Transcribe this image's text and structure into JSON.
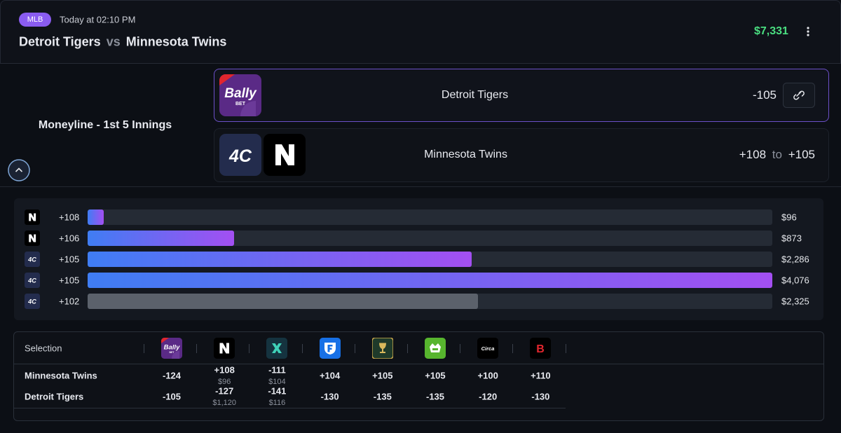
{
  "header": {
    "league": "MLB",
    "time": "Today at 02:10 PM",
    "team1": "Detroit Tigers",
    "vs": "vs",
    "team2": "Minnesota Twins",
    "balance": "$7,331"
  },
  "logos": {
    "bally": "Bally",
    "bally_sub": "BET",
    "fourc": "4C",
    "circa": "Circa",
    "betonline": "B"
  },
  "market": {
    "title": "Moneyline - 1st 5 Innings",
    "selections": [
      {
        "name": "Detroit Tigers",
        "odds": "-105"
      },
      {
        "name": "Minnesota Twins",
        "odds_from": "+108",
        "to": "to",
        "odds_to": "+105"
      }
    ]
  },
  "ladder": [
    {
      "book": "n",
      "odds": "+108",
      "amount": 96,
      "amount_label": "$96",
      "colors": [
        "#3f7df3",
        "#a34ff2"
      ]
    },
    {
      "book": "n",
      "odds": "+106",
      "amount": 873,
      "amount_label": "$873",
      "colors": [
        "#3f7df3",
        "#a34ff2"
      ]
    },
    {
      "book": "fourc",
      "odds": "+105",
      "amount": 2286,
      "amount_label": "$2,286",
      "colors": [
        "#3f7df3",
        "#a34ff2"
      ]
    },
    {
      "book": "fourc",
      "odds": "+105",
      "amount": 4076,
      "amount_label": "$4,076",
      "colors": [
        "#3f7df3",
        "#a34ff2"
      ]
    },
    {
      "book": "fourc",
      "odds": "+102",
      "amount": 2325,
      "amount_label": "$2,325",
      "colors": [
        "#5b616b",
        "#5b616b"
      ]
    }
  ],
  "table": {
    "header": "Selection",
    "books": [
      "bally",
      "n",
      "x",
      "fanduel",
      "goblet",
      "draftkings",
      "circa",
      "betonline"
    ],
    "rows": [
      {
        "name": "Minnesota Twins",
        "cells": [
          {
            "odds": "-124"
          },
          {
            "odds": "+108",
            "stake": "$96"
          },
          {
            "odds": "-111",
            "stake": "$104"
          },
          {
            "odds": "+104"
          },
          {
            "odds": "+105"
          },
          {
            "odds": "+105"
          },
          {
            "odds": "+100"
          },
          {
            "odds": "+110"
          }
        ]
      },
      {
        "name": "Detroit Tigers",
        "cells": [
          {
            "odds": "-105"
          },
          {
            "odds": "-127",
            "stake": "$1,120"
          },
          {
            "odds": "-141",
            "stake": "$116"
          },
          {
            "odds": "-130"
          },
          {
            "odds": "-135"
          },
          {
            "odds": "-135"
          },
          {
            "odds": "-120"
          },
          {
            "odds": "-130"
          }
        ]
      }
    ]
  }
}
